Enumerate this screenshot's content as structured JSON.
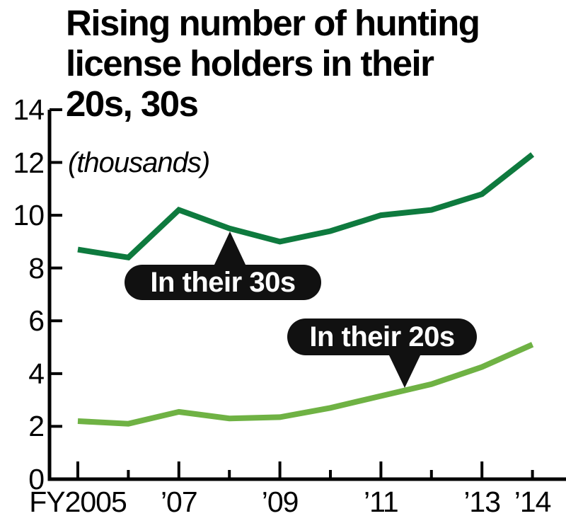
{
  "figure": {
    "title": "Rising number of hunting license holders in their 20s, 30s",
    "title_lines": [
      "Rising number of hunting",
      "license holders in their",
      "20s, 30s"
    ],
    "unit_label": "(thousands)"
  },
  "chart_data": {
    "type": "line",
    "title": "Rising number of hunting license holders in their 20s, 30s",
    "unit": "thousands",
    "x": [
      2005,
      2006,
      2007,
      2008,
      2009,
      2010,
      2011,
      2012,
      2013,
      2014
    ],
    "x_tick_labels": [
      "FY2005",
      "",
      "’07",
      "",
      "’09",
      "",
      "’11",
      "",
      "’13",
      "’14"
    ],
    "x_tick_major": [
      true,
      false,
      true,
      false,
      true,
      false,
      true,
      false,
      true,
      false
    ],
    "y_ticks": [
      0,
      2,
      4,
      6,
      8,
      10,
      12,
      14
    ],
    "ylim": [
      0,
      14
    ],
    "grid": false,
    "legend_position": "inline-callouts",
    "series": [
      {
        "name": "In their 30s",
        "color": "#0e7a3e",
        "values": [
          8.7,
          8.4,
          10.2,
          9.5,
          9.0,
          9.4,
          10.0,
          10.2,
          10.8,
          12.3
        ]
      },
      {
        "name": "In their 20s",
        "color": "#6fb244",
        "values": [
          2.2,
          2.1,
          2.55,
          2.3,
          2.35,
          2.7,
          3.15,
          3.6,
          4.25,
          5.1
        ]
      }
    ],
    "annotations": [
      {
        "text": "In their 30s",
        "series": "In their 30s",
        "pointer": "up"
      },
      {
        "text": "In their 20s",
        "series": "In their 20s",
        "pointer": "down"
      }
    ],
    "colors": {
      "line_30s": "#0e7a3e",
      "line_20s": "#6fb244",
      "callout_bg": "#111111",
      "callout_text": "#ffffff",
      "axis": "#000000"
    }
  }
}
